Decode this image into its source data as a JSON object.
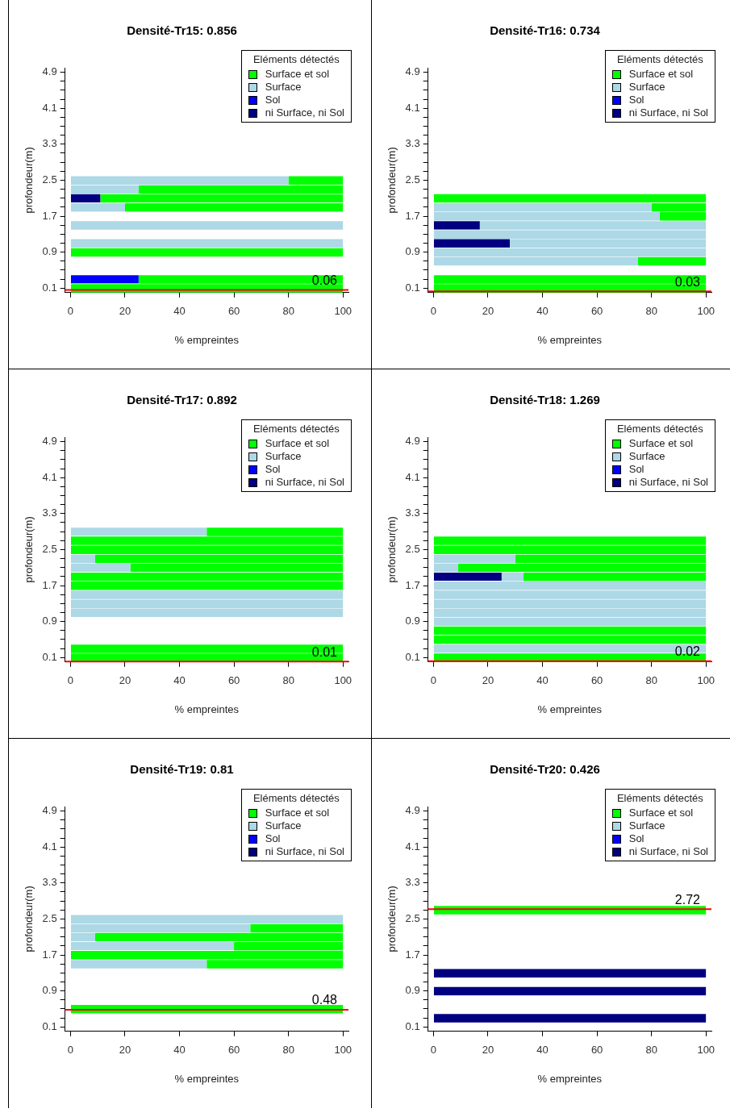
{
  "chart_data": [
    {
      "type": "bar",
      "orientation": "horizontal",
      "title": "Densité-Tr15: 0.856",
      "xlabel": "% empreintes",
      "ylabel": "profondeur(m)",
      "legend_title": "Eléments détectés",
      "legend": "top right",
      "x": [
        0.1,
        0.3,
        0.9,
        1.1,
        1.5,
        1.9,
        2.1,
        2.3,
        2.5
      ],
      "series": [
        {
          "name": "Surface et sol",
          "color": "#00ff00",
          "base": [
            0,
            25,
            0,
            null,
            null,
            20,
            11,
            25,
            80
          ],
          "values": [
            100,
            75,
            100,
            null,
            null,
            80,
            89,
            75,
            20
          ]
        },
        {
          "name": "Surface",
          "color": "#add8e6",
          "base": [
            null,
            null,
            null,
            0,
            0,
            0,
            null,
            0,
            0
          ],
          "values": [
            null,
            null,
            null,
            100,
            100,
            20,
            null,
            25,
            80
          ]
        },
        {
          "name": "Sol",
          "color": "#0000ff",
          "base": [
            null,
            0,
            null,
            null,
            null,
            null,
            null,
            null,
            null
          ],
          "values": [
            null,
            25,
            null,
            null,
            null,
            null,
            null,
            null,
            null
          ]
        },
        {
          "name": "ni Surface, ni Sol",
          "color": "#000080",
          "base": [
            null,
            null,
            null,
            null,
            null,
            null,
            0,
            null,
            null
          ],
          "values": [
            null,
            null,
            null,
            null,
            null,
            null,
            11,
            null,
            null
          ]
        }
      ],
      "xlim": [
        -2,
        102
      ],
      "xticks": [
        0,
        20,
        40,
        60,
        80,
        100
      ],
      "ylim": [
        0,
        5
      ],
      "yticks": [
        0.1,
        {
          "value": 0.3,
          "label": null
        },
        {
          "value": 0.5,
          "label": null
        },
        {
          "value": 0.7,
          "label": null
        },
        0.9,
        {
          "value": 1.1,
          "label": null
        },
        {
          "value": 1.3,
          "label": null
        },
        {
          "value": 1.5,
          "label": null
        },
        1.7,
        {
          "value": 1.9,
          "label": null
        },
        {
          "value": 2.1,
          "label": null
        },
        {
          "value": 2.3,
          "label": null
        },
        2.5,
        {
          "value": 2.7,
          "label": null
        },
        {
          "value": 2.9,
          "label": null
        },
        {
          "value": 3.1,
          "label": null
        },
        3.3,
        {
          "value": 3.5,
          "label": null
        },
        {
          "value": 3.7,
          "label": null
        },
        {
          "value": 3.9,
          "label": null
        },
        4.1,
        {
          "value": 4.3,
          "label": null
        },
        {
          "value": 4.5,
          "label": null
        },
        {
          "value": 4.7,
          "label": null
        },
        4.9
      ],
      "ref_lines": [
        {
          "axis": "y",
          "value": 0.06,
          "label": "0.06",
          "color": "#ff0000"
        }
      ]
    },
    {
      "type": "bar",
      "orientation": "horizontal",
      "title": "Densité-Tr16: 0.734",
      "xlabel": "% empreintes",
      "ylabel": "profondeur(m)",
      "legend_title": "Eléments détectés",
      "legend": "top right",
      "x": [
        0.1,
        0.3,
        0.7,
        0.9,
        1.1,
        1.3,
        1.5,
        1.7,
        1.9,
        2.1
      ],
      "series": [
        {
          "name": "Surface et sol",
          "color": "#00ff00",
          "base": [
            0,
            0,
            75,
            null,
            null,
            null,
            null,
            83,
            80,
            0
          ],
          "values": [
            100,
            100,
            25,
            null,
            null,
            null,
            null,
            17,
            20,
            100
          ]
        },
        {
          "name": "Surface",
          "color": "#add8e6",
          "base": [
            null,
            null,
            0,
            0,
            28,
            0,
            17,
            0,
            0,
            null
          ],
          "values": [
            null,
            null,
            75,
            100,
            72,
            100,
            83,
            83,
            80,
            null
          ]
        },
        {
          "name": "Sol",
          "color": "#0000ff",
          "base": [
            null,
            null,
            null,
            null,
            null,
            null,
            null,
            null,
            null,
            null
          ],
          "values": [
            null,
            null,
            null,
            null,
            null,
            null,
            null,
            null,
            null,
            null
          ]
        },
        {
          "name": "ni Surface, ni Sol",
          "color": "#000080",
          "base": [
            null,
            null,
            null,
            null,
            0,
            null,
            0,
            null,
            null,
            null
          ],
          "values": [
            null,
            null,
            null,
            null,
            28,
            null,
            17,
            null,
            null,
            null
          ]
        }
      ],
      "xlim": [
        -2,
        102
      ],
      "xticks": [
        0,
        20,
        40,
        60,
        80,
        100
      ],
      "ylim": [
        0,
        5
      ],
      "yticks": [
        0.1,
        {
          "value": 0.3,
          "label": null
        },
        {
          "value": 0.5,
          "label": null
        },
        {
          "value": 0.7,
          "label": null
        },
        0.9,
        {
          "value": 1.1,
          "label": null
        },
        {
          "value": 1.3,
          "label": null
        },
        {
          "value": 1.5,
          "label": null
        },
        1.7,
        {
          "value": 1.9,
          "label": null
        },
        {
          "value": 2.1,
          "label": null
        },
        {
          "value": 2.3,
          "label": null
        },
        2.5,
        {
          "value": 2.7,
          "label": null
        },
        {
          "value": 2.9,
          "label": null
        },
        {
          "value": 3.1,
          "label": null
        },
        3.3,
        {
          "value": 3.5,
          "label": null
        },
        {
          "value": 3.7,
          "label": null
        },
        {
          "value": 3.9,
          "label": null
        },
        4.1,
        {
          "value": 4.3,
          "label": null
        },
        {
          "value": 4.5,
          "label": null
        },
        {
          "value": 4.7,
          "label": null
        },
        4.9
      ],
      "ref_lines": [
        {
          "axis": "y",
          "value": 0.03,
          "label": "0.03",
          "color": "#ff0000"
        }
      ]
    },
    {
      "type": "bar",
      "orientation": "horizontal",
      "title": "Densité-Tr17: 0.892",
      "xlabel": "% empreintes",
      "ylabel": "profondeur(m)",
      "legend_title": "Eléments détectés",
      "legend": "top right",
      "x": [
        0.1,
        0.3,
        1.1,
        1.3,
        1.5,
        1.7,
        1.9,
        2.1,
        2.3,
        2.5,
        2.7,
        2.9
      ],
      "series": [
        {
          "name": "Surface et sol",
          "color": "#00ff00",
          "base": [
            0,
            0,
            null,
            null,
            null,
            0,
            0,
            22,
            9,
            0,
            0,
            50
          ],
          "values": [
            100,
            100,
            null,
            null,
            null,
            100,
            100,
            78,
            91,
            100,
            100,
            50
          ]
        },
        {
          "name": "Surface",
          "color": "#add8e6",
          "base": [
            null,
            null,
            0,
            0,
            0,
            null,
            null,
            0,
            0,
            null,
            null,
            0
          ],
          "values": [
            null,
            null,
            100,
            100,
            100,
            null,
            null,
            22,
            9,
            null,
            null,
            50
          ]
        },
        {
          "name": "Sol",
          "color": "#0000ff",
          "base": [
            null,
            null,
            null,
            null,
            null,
            null,
            null,
            null,
            null,
            null,
            null,
            null
          ],
          "values": [
            null,
            null,
            null,
            null,
            null,
            null,
            null,
            null,
            null,
            null,
            null,
            null
          ]
        },
        {
          "name": "ni Surface, ni Sol",
          "color": "#000080",
          "base": [
            null,
            null,
            null,
            null,
            null,
            null,
            null,
            null,
            null,
            null,
            null,
            null
          ],
          "values": [
            null,
            null,
            null,
            null,
            null,
            null,
            null,
            null,
            null,
            null,
            null,
            null
          ]
        }
      ],
      "xlim": [
        -2,
        102
      ],
      "xticks": [
        0,
        20,
        40,
        60,
        80,
        100
      ],
      "ylim": [
        0,
        5
      ],
      "yticks": [
        0.1,
        {
          "value": 0.3,
          "label": null
        },
        {
          "value": 0.5,
          "label": null
        },
        {
          "value": 0.7,
          "label": null
        },
        0.9,
        {
          "value": 1.1,
          "label": null
        },
        {
          "value": 1.3,
          "label": null
        },
        {
          "value": 1.5,
          "label": null
        },
        1.7,
        {
          "value": 1.9,
          "label": null
        },
        {
          "value": 2.1,
          "label": null
        },
        {
          "value": 2.3,
          "label": null
        },
        2.5,
        {
          "value": 2.7,
          "label": null
        },
        {
          "value": 2.9,
          "label": null
        },
        {
          "value": 3.1,
          "label": null
        },
        3.3,
        {
          "value": 3.5,
          "label": null
        },
        {
          "value": 3.7,
          "label": null
        },
        {
          "value": 3.9,
          "label": null
        },
        4.1,
        {
          "value": 4.3,
          "label": null
        },
        {
          "value": 4.5,
          "label": null
        },
        {
          "value": 4.7,
          "label": null
        },
        4.9
      ],
      "ref_lines": [
        {
          "axis": "y",
          "value": 0.01,
          "label": "0.01",
          "color": "#ff0000"
        }
      ]
    },
    {
      "type": "bar",
      "orientation": "horizontal",
      "title": "Densité-Tr18: 1.269",
      "xlabel": "% empreintes",
      "ylabel": "profondeur(m)",
      "legend_title": "Eléments détectés",
      "legend": "top right",
      "x": [
        0.1,
        0.3,
        0.5,
        0.7,
        0.9,
        1.1,
        1.3,
        1.5,
        1.7,
        1.9,
        2.1,
        2.3,
        2.5,
        2.7
      ],
      "series": [
        {
          "name": "Surface et sol",
          "color": "#00ff00",
          "base": [
            0,
            null,
            0,
            0,
            null,
            null,
            null,
            null,
            null,
            33,
            9,
            30,
            0,
            0
          ],
          "values": [
            100,
            null,
            100,
            100,
            null,
            null,
            null,
            null,
            null,
            67,
            91,
            70,
            100,
            100
          ]
        },
        {
          "name": "Surface",
          "color": "#add8e6",
          "base": [
            null,
            0,
            null,
            null,
            0,
            0,
            0,
            0,
            0,
            25,
            0,
            0,
            null,
            null
          ],
          "values": [
            null,
            100,
            null,
            null,
            100,
            100,
            100,
            100,
            100,
            8,
            9,
            30,
            null,
            null
          ]
        },
        {
          "name": "Sol",
          "color": "#0000ff",
          "base": [
            null,
            null,
            null,
            null,
            null,
            null,
            null,
            null,
            null,
            null,
            null,
            null,
            null,
            null
          ],
          "values": [
            null,
            null,
            null,
            null,
            null,
            null,
            null,
            null,
            null,
            null,
            null,
            null,
            null,
            null
          ]
        },
        {
          "name": "ni Surface, ni Sol",
          "color": "#000080",
          "base": [
            null,
            null,
            null,
            null,
            null,
            null,
            null,
            null,
            null,
            0,
            null,
            null,
            null,
            null
          ],
          "values": [
            null,
            null,
            null,
            null,
            null,
            null,
            null,
            null,
            null,
            25,
            null,
            null,
            null,
            null
          ]
        }
      ],
      "xlim": [
        -2,
        102
      ],
      "xticks": [
        0,
        20,
        40,
        60,
        80,
        100
      ],
      "ylim": [
        0,
        5
      ],
      "yticks": [
        0.1,
        {
          "value": 0.3,
          "label": null
        },
        {
          "value": 0.5,
          "label": null
        },
        {
          "value": 0.7,
          "label": null
        },
        0.9,
        {
          "value": 1.1,
          "label": null
        },
        {
          "value": 1.3,
          "label": null
        },
        {
          "value": 1.5,
          "label": null
        },
        1.7,
        {
          "value": 1.9,
          "label": null
        },
        {
          "value": 2.1,
          "label": null
        },
        {
          "value": 2.3,
          "label": null
        },
        2.5,
        {
          "value": 2.7,
          "label": null
        },
        {
          "value": 2.9,
          "label": null
        },
        {
          "value": 3.1,
          "label": null
        },
        3.3,
        {
          "value": 3.5,
          "label": null
        },
        {
          "value": 3.7,
          "label": null
        },
        {
          "value": 3.9,
          "label": null
        },
        4.1,
        {
          "value": 4.3,
          "label": null
        },
        {
          "value": 4.5,
          "label": null
        },
        {
          "value": 4.7,
          "label": null
        },
        4.9
      ],
      "ref_lines": [
        {
          "axis": "y",
          "value": 0.02,
          "label": "0.02",
          "color": "#ff0000"
        }
      ]
    },
    {
      "type": "bar",
      "orientation": "horizontal",
      "title": "Densité-Tr19: 0.81",
      "xlabel": "% empreintes",
      "ylabel": "profondeur(m)",
      "legend_title": "Eléments détectés",
      "legend": "top right",
      "x": [
        0.5,
        1.5,
        1.7,
        1.9,
        2.1,
        2.3,
        2.5
      ],
      "series": [
        {
          "name": "Surface et sol",
          "color": "#00ff00",
          "base": [
            0,
            50,
            0,
            60,
            9,
            66,
            null
          ],
          "values": [
            100,
            50,
            100,
            40,
            91,
            34,
            null
          ]
        },
        {
          "name": "Surface",
          "color": "#add8e6",
          "base": [
            null,
            0,
            null,
            0,
            0,
            0,
            0
          ],
          "values": [
            null,
            50,
            null,
            60,
            9,
            66,
            100
          ]
        },
        {
          "name": "Sol",
          "color": "#0000ff",
          "base": [
            null,
            null,
            null,
            null,
            null,
            null,
            null
          ],
          "values": [
            null,
            null,
            null,
            null,
            null,
            null,
            null
          ]
        },
        {
          "name": "ni Surface, ni Sol",
          "color": "#000080",
          "base": [
            null,
            null,
            null,
            null,
            null,
            null,
            null
          ],
          "values": [
            null,
            null,
            null,
            null,
            null,
            null,
            null
          ]
        }
      ],
      "xlim": [
        -2,
        102
      ],
      "xticks": [
        0,
        20,
        40,
        60,
        80,
        100
      ],
      "ylim": [
        0,
        5
      ],
      "yticks": [
        0.1,
        {
          "value": 0.3,
          "label": null
        },
        {
          "value": 0.5,
          "label": null
        },
        {
          "value": 0.7,
          "label": null
        },
        0.9,
        {
          "value": 1.1,
          "label": null
        },
        {
          "value": 1.3,
          "label": null
        },
        {
          "value": 1.5,
          "label": null
        },
        1.7,
        {
          "value": 1.9,
          "label": null
        },
        {
          "value": 2.1,
          "label": null
        },
        {
          "value": 2.3,
          "label": null
        },
        2.5,
        {
          "value": 2.7,
          "label": null
        },
        {
          "value": 2.9,
          "label": null
        },
        {
          "value": 3.1,
          "label": null
        },
        3.3,
        {
          "value": 3.5,
          "label": null
        },
        {
          "value": 3.7,
          "label": null
        },
        {
          "value": 3.9,
          "label": null
        },
        4.1,
        {
          "value": 4.3,
          "label": null
        },
        {
          "value": 4.5,
          "label": null
        },
        {
          "value": 4.7,
          "label": null
        },
        4.9
      ],
      "ref_lines": [
        {
          "axis": "y",
          "value": 0.48,
          "label": "0.48",
          "color": "#ff0000"
        }
      ]
    },
    {
      "type": "bar",
      "orientation": "horizontal",
      "title": "Densité-Tr20: 0.426",
      "xlabel": "% empreintes",
      "ylabel": "profondeur(m)",
      "legend_title": "Eléments détectés",
      "legend": "top right",
      "x": [
        0.3,
        0.9,
        1.3,
        2.7
      ],
      "series": [
        {
          "name": "Surface et sol",
          "color": "#00ff00",
          "base": [
            null,
            null,
            null,
            0
          ],
          "values": [
            null,
            null,
            null,
            100
          ]
        },
        {
          "name": "Surface",
          "color": "#add8e6",
          "base": [
            null,
            null,
            null,
            null
          ],
          "values": [
            null,
            null,
            null,
            null
          ]
        },
        {
          "name": "Sol",
          "color": "#0000ff",
          "base": [
            null,
            null,
            null,
            null
          ],
          "values": [
            null,
            null,
            null,
            null
          ]
        },
        {
          "name": "ni Surface, ni Sol",
          "color": "#000080",
          "base": [
            0,
            0,
            0,
            null
          ],
          "values": [
            100,
            100,
            100,
            null
          ]
        }
      ],
      "xlim": [
        -2,
        102
      ],
      "xticks": [
        0,
        20,
        40,
        60,
        80,
        100
      ],
      "ylim": [
        0,
        5
      ],
      "yticks": [
        0.1,
        {
          "value": 0.3,
          "label": null
        },
        {
          "value": 0.5,
          "label": null
        },
        {
          "value": 0.7,
          "label": null
        },
        0.9,
        {
          "value": 1.1,
          "label": null
        },
        {
          "value": 1.3,
          "label": null
        },
        {
          "value": 1.5,
          "label": null
        },
        1.7,
        {
          "value": 1.9,
          "label": null
        },
        {
          "value": 2.1,
          "label": null
        },
        {
          "value": 2.3,
          "label": null
        },
        2.5,
        {
          "value": 2.7,
          "label": null
        },
        {
          "value": 2.9,
          "label": null
        },
        {
          "value": 3.1,
          "label": null
        },
        3.3,
        {
          "value": 3.5,
          "label": null
        },
        {
          "value": 3.7,
          "label": null
        },
        {
          "value": 3.9,
          "label": null
        },
        4.1,
        {
          "value": 4.3,
          "label": null
        },
        {
          "value": 4.5,
          "label": null
        },
        {
          "value": 4.7,
          "label": null
        },
        4.9
      ],
      "ref_lines": [
        {
          "axis": "y",
          "value": 2.72,
          "label": "2.72",
          "color": "#ff0000"
        }
      ]
    }
  ]
}
